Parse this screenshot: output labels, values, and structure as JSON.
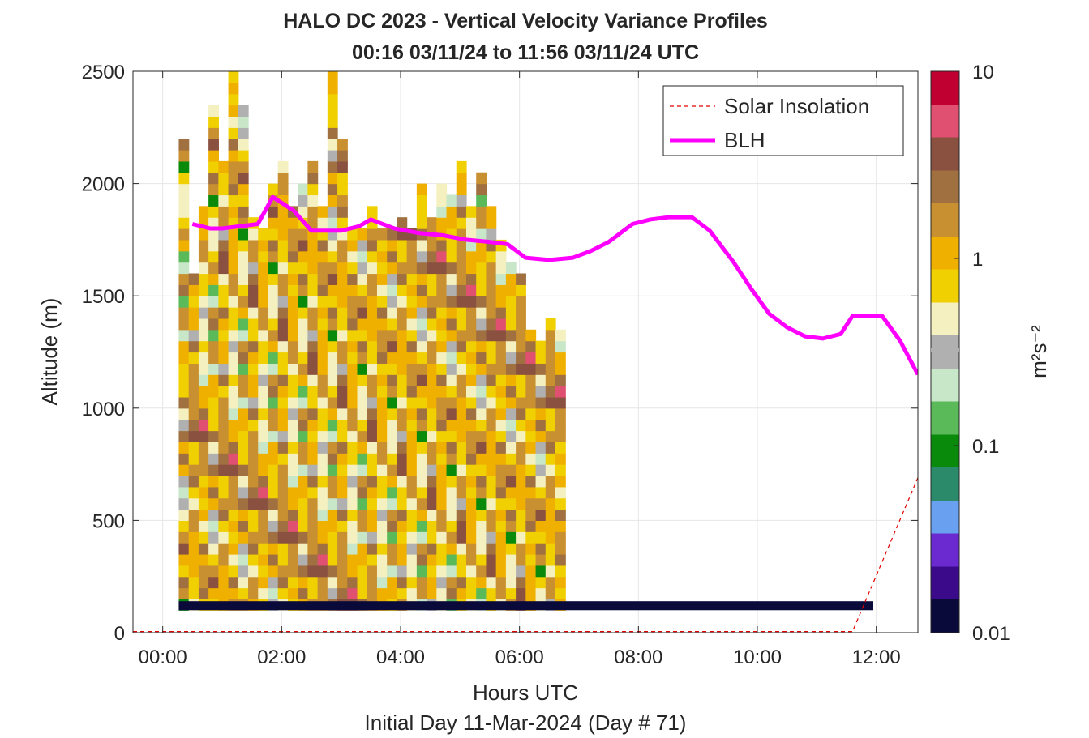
{
  "chart_data": {
    "type": "heatmap",
    "title_line1": "HALO DC 2023 - Vertical Velocity Variance Profiles",
    "title_line2": "00:16 03/11/24 to 11:56 03/11/24  UTC",
    "xlabel": "Hours UTC",
    "xlabel_sub": "Initial Day 11-Mar-2024 (Day # 71)",
    "ylabel": "Altitude (m)",
    "xlim": [
      -0.5,
      12.7
    ],
    "ylim": [
      0,
      2500
    ],
    "x_ticks": [
      {
        "value": 0,
        "label": "00:00"
      },
      {
        "value": 2,
        "label": "02:00"
      },
      {
        "value": 4,
        "label": "04:00"
      },
      {
        "value": 6,
        "label": "06:00"
      },
      {
        "value": 8,
        "label": "08:00"
      },
      {
        "value": 10,
        "label": "10:00"
      },
      {
        "value": 12,
        "label": "12:00"
      }
    ],
    "y_ticks": [
      {
        "value": 0,
        "label": "0"
      },
      {
        "value": 500,
        "label": "500"
      },
      {
        "value": 1000,
        "label": "1000"
      },
      {
        "value": 1500,
        "label": "1500"
      },
      {
        "value": 2000,
        "label": "2000"
      },
      {
        "value": 2500,
        "label": "2500"
      }
    ],
    "grid": true,
    "colorbar": {
      "scale": "log",
      "range": [
        0.01,
        10
      ],
      "label": "m²s⁻²",
      "ticks": [
        {
          "value": 0.01,
          "label": "0.01"
        },
        {
          "value": 0.1,
          "label": "0.1"
        },
        {
          "value": 1,
          "label": "1"
        },
        {
          "value": 10,
          "label": "10"
        }
      ],
      "colors": [
        "#0a0a3a",
        "#3a0a8a",
        "#6a2ad0",
        "#6aa0f0",
        "#2a8a6a",
        "#0a8a0a",
        "#5aba5a",
        "#c8e6c8",
        "#b0b0b0",
        "#f5f0c0",
        "#f0d000",
        "#f0b000",
        "#c89030",
        "#a07040",
        "#8a5040",
        "#e05070",
        "#c00030"
      ]
    },
    "legend": {
      "placement": "top-right",
      "entries": [
        {
          "label": "Solar Insolation",
          "style": "dashed",
          "color": "#e00000"
        },
        {
          "label": "BLH",
          "style": "solid",
          "color": "#ff00ff"
        }
      ]
    },
    "heatmap": {
      "time_start": 0.27,
      "time_step": 0.1667,
      "alt_start": 100,
      "alt_step": 50,
      "tops": [
        2200,
        1570,
        1900,
        2350,
        2100,
        2500,
        2340,
        1820,
        1800,
        2000,
        2060,
        1900,
        1960,
        2060,
        1880,
        2500,
        2180,
        1800,
        1800,
        1900,
        1800,
        1800,
        1850,
        1800,
        2000,
        1850,
        2000,
        1950,
        2100,
        1900,
        2050,
        1900,
        1730,
        1630,
        1560,
        1330,
        1300,
        1380,
        1350
      ],
      "variance_m2s2": [
        [
          0.1,
          0.5,
          0.7,
          0.6,
          0.9,
          1.5,
          1.8,
          1.2,
          0.8,
          0.3,
          0.5,
          0.7,
          1.1,
          1.4,
          1.8,
          2.5,
          3.1,
          4.2,
          2.0,
          1.5,
          0.9,
          0.6,
          1.5,
          0.4,
          0.25,
          0.3,
          0.5,
          0.12,
          0.7,
          0.4,
          0.18,
          0.7,
          0.5,
          1.8,
          3.2,
          0.9,
          0.4,
          0.3,
          1.0
        ],
        [
          0.6,
          1.5,
          0.8,
          2.5,
          1.1,
          1.3,
          0.9,
          0.7,
          1.6,
          0.45,
          0.25,
          0.8,
          1.3,
          2.8,
          0.6,
          1.5,
          0.3,
          2.2,
          4.5,
          0.7,
          1.9,
          0.9,
          1.2,
          0.85,
          0.5,
          1.6,
          0.9,
          0.4,
          2.1,
          1.3,
          0.8,
          0.15,
          0.6,
          1.9,
          0.7,
          3.5,
          1.1,
          0.5,
          1.4
        ],
        [
          1.4,
          0.9,
          2.8,
          0.7,
          1.6,
          3.5,
          1.2,
          2.0,
          0.55,
          1.7,
          0.9,
          0.35,
          2.4,
          0.6,
          1.3,
          0.8,
          1.5,
          0.45,
          1.8,
          2.6,
          0.7,
          1.4,
          0.25,
          1.0,
          2.2,
          0.6,
          1.7,
          0.9,
          0.3,
          1.5,
          2.8,
          0.8,
          1.2,
          0.5,
          1.6,
          0.4,
          2.3,
          0.9,
          0.7
        ]
      ]
    },
    "blh_line": {
      "x": [
        0.5,
        0.8,
        1.0,
        1.3,
        1.6,
        1.85,
        2.2,
        2.5,
        3.0,
        3.3,
        3.5,
        3.9,
        4.3,
        4.7,
        5.1,
        5.5,
        5.8,
        6.1,
        6.5,
        6.9,
        7.2,
        7.5,
        7.9,
        8.2,
        8.5,
        8.9,
        9.2,
        9.6,
        9.9,
        10.2,
        10.5,
        10.8,
        11.1,
        11.4,
        11.6,
        12.1,
        12.4,
        12.7
      ],
      "y": [
        1820,
        1800,
        1800,
        1810,
        1820,
        1940,
        1880,
        1790,
        1790,
        1810,
        1840,
        1800,
        1780,
        1770,
        1750,
        1740,
        1730,
        1670,
        1660,
        1670,
        1700,
        1740,
        1820,
        1840,
        1850,
        1850,
        1790,
        1650,
        1530,
        1420,
        1360,
        1320,
        1310,
        1330,
        1410,
        1410,
        1300,
        1150
      ]
    },
    "solar_line": {
      "x": [
        -0.5,
        11.6,
        12.7
      ],
      "y": [
        5,
        5,
        690
      ]
    },
    "ground_strip": {
      "x_start": 0.27,
      "x_end": 11.95,
      "y_bottom": 100,
      "y_top": 140,
      "color": "#0a0a3a"
    }
  }
}
